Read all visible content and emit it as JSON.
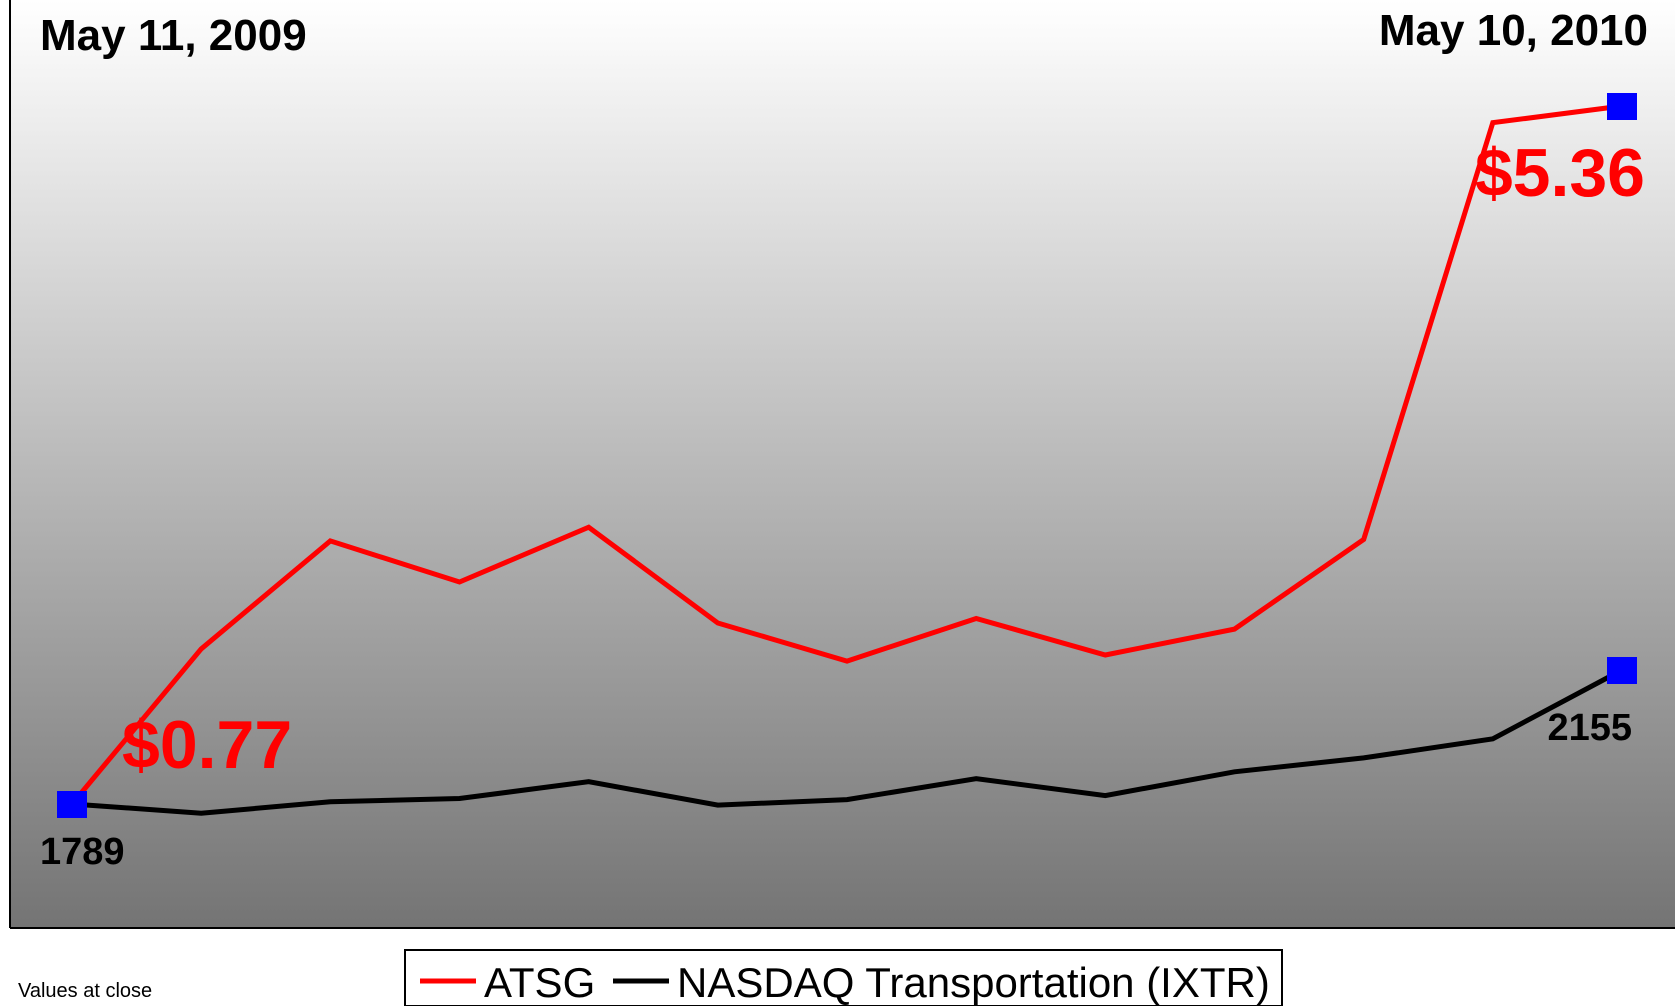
{
  "chart_data": {
    "type": "line",
    "x": [
      "May 11, 2009",
      "",
      "",
      "",
      "",
      "",
      "",
      "",
      "",
      "",
      "",
      "",
      "May 10, 2010"
    ],
    "start_label": "May 11, 2009",
    "end_label": "May 10, 2010",
    "series": [
      {
        "name": "ATSG",
        "color": "#ff0000",
        "axis": "left",
        "values": [
          0.77,
          1.79,
          2.5,
          2.23,
          2.59,
          1.96,
          1.71,
          1.99,
          1.75,
          1.92,
          2.51,
          5.25,
          5.36
        ],
        "start_value_label": "$0.77",
        "end_value_label": "$5.36"
      },
      {
        "name": "NASDAQ Transportation (IXTR)",
        "color": "#000000",
        "axis": "right",
        "values": [
          1789,
          1764,
          1795,
          1804,
          1850,
          1786,
          1801,
          1858,
          1812,
          1877,
          1915,
          1967,
          2155
        ],
        "start_value_label": "1789",
        "end_value_label": "2155"
      }
    ],
    "marker_color": "#0000ff",
    "background": {
      "top": "#ffffff",
      "bottom": "#747474"
    },
    "legend_position": "bottom-center",
    "grid": false,
    "note": "Values at close"
  }
}
